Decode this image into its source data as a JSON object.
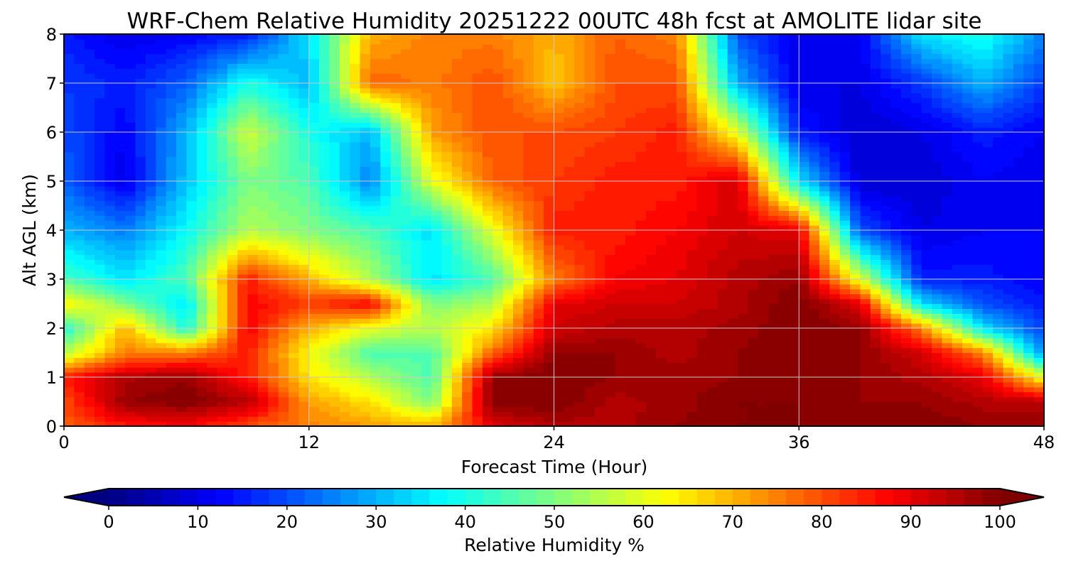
{
  "chart_data": {
    "type": "heatmap",
    "title": "WRF-Chem Relative Humidity 20251222 00UTC 48h fcst at AMOLITE lidar site",
    "xlabel": "Forecast Time (Hour)",
    "ylabel": "Alt AGL (km)",
    "xlim": [
      0,
      48
    ],
    "ylim": [
      0,
      8
    ],
    "xticks": [
      "0",
      "12",
      "24",
      "36",
      "48"
    ],
    "yticks": [
      "0",
      "1",
      "2",
      "3",
      "4",
      "5",
      "6",
      "7",
      "8"
    ],
    "grid": true,
    "x": [
      0,
      3,
      6,
      9,
      12,
      15,
      18,
      21,
      24,
      27,
      30,
      33,
      36,
      39,
      42,
      45,
      48
    ],
    "y": [
      0,
      0.5,
      1,
      1.5,
      2,
      2.5,
      3,
      4,
      5,
      6,
      7,
      8
    ],
    "z": [
      [
        78,
        85,
        88,
        80,
        75,
        72,
        70,
        90,
        95,
        95,
        98,
        100,
        100,
        100,
        100,
        98,
        97
      ],
      [
        80,
        98,
        100,
        95,
        72,
        65,
        50,
        100,
        100,
        95,
        97,
        100,
        100,
        98,
        98,
        95,
        95
      ],
      [
        85,
        95,
        98,
        85,
        65,
        55,
        45,
        98,
        100,
        98,
        97,
        98,
        100,
        98,
        95,
        90,
        60
      ],
      [
        55,
        75,
        75,
        85,
        62,
        45,
        45,
        78,
        98,
        98,
        95,
        98,
        100,
        98,
        92,
        75,
        25
      ],
      [
        40,
        70,
        40,
        88,
        70,
        60,
        55,
        65,
        92,
        95,
        95,
        97,
        100,
        98,
        75,
        35,
        18
      ],
      [
        65,
        50,
        35,
        88,
        82,
        88,
        50,
        55,
        90,
        92,
        92,
        95,
        100,
        90,
        35,
        20,
        15
      ],
      [
        45,
        35,
        45,
        85,
        70,
        55,
        35,
        45,
        75,
        88,
        90,
        95,
        98,
        60,
        15,
        15,
        12
      ],
      [
        30,
        25,
        38,
        55,
        50,
        45,
        35,
        60,
        85,
        85,
        88,
        92,
        90,
        20,
        10,
        12,
        12
      ],
      [
        22,
        10,
        32,
        50,
        45,
        25,
        60,
        78,
        82,
        85,
        85,
        92,
        35,
        8,
        8,
        12,
        10
      ],
      [
        20,
        12,
        30,
        58,
        40,
        30,
        72,
        80,
        80,
        82,
        85,
        60,
        15,
        8,
        10,
        15,
        12
      ],
      [
        18,
        15,
        22,
        40,
        30,
        78,
        75,
        80,
        68,
        80,
        80,
        30,
        10,
        10,
        18,
        30,
        18
      ],
      [
        15,
        10,
        12,
        15,
        35,
        70,
        75,
        75,
        70,
        78,
        75,
        20,
        10,
        12,
        35,
        40,
        25
      ]
    ],
    "colorbar": {
      "label": "Relative Humidity %",
      "colormap": "jet",
      "range": [
        0,
        100
      ],
      "extend": "both",
      "ticks": [
        "0",
        "10",
        "20",
        "30",
        "40",
        "50",
        "60",
        "70",
        "80",
        "90",
        "100"
      ]
    }
  }
}
